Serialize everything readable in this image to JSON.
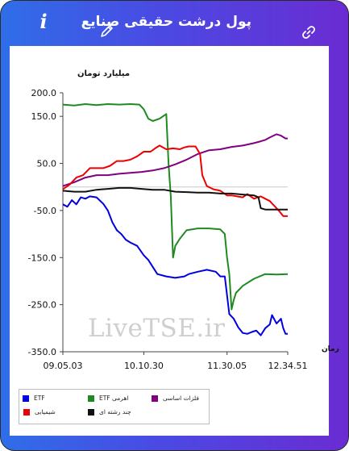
{
  "app": {
    "title": "پول درشت حقیقی صنایع",
    "info_icon": "info-icon",
    "edit_icon": "pencil-icon",
    "share_icon": "link-icon"
  },
  "colors": {
    "gradient_start": "#2f6ee8",
    "gradient_end": "#6a2cd2"
  },
  "chart_data": {
    "type": "line",
    "ylabel": "میلیارد تومان",
    "xlabel": "زمان",
    "ylim": [
      -350,
      200
    ],
    "y_ticks": [
      "200.0",
      "150.0",
      "50.0",
      "-50.0",
      "-150.0",
      "-250.0",
      "-350.0"
    ],
    "y_tick_values": [
      200,
      150,
      50,
      -50,
      -150,
      -250,
      -350
    ],
    "x_ticks": [
      "09.05.03",
      "10.10.30",
      "11.30.05",
      "12.34.51"
    ],
    "x_range": [
      0,
      100
    ],
    "x_tick_values": [
      0,
      36,
      73,
      100
    ],
    "reference_line": 0,
    "grid": false,
    "legend_position": "bottom-left",
    "watermark": "LiveTSE.ir",
    "series": [
      {
        "name": "ETF",
        "color": "#0000e0",
        "points": [
          [
            0,
            -37
          ],
          [
            2,
            -42
          ],
          [
            4,
            -28
          ],
          [
            6,
            -37
          ],
          [
            8,
            -22
          ],
          [
            10,
            -25
          ],
          [
            12,
            -20
          ],
          [
            15,
            -22
          ],
          [
            18,
            -36
          ],
          [
            20,
            -50
          ],
          [
            22,
            -75
          ],
          [
            24,
            -92
          ],
          [
            26,
            -100
          ],
          [
            28,
            -112
          ],
          [
            30,
            -118
          ],
          [
            33,
            -125
          ],
          [
            36,
            -145
          ],
          [
            38,
            -155
          ],
          [
            40,
            -170
          ],
          [
            42,
            -185
          ],
          [
            46,
            -190
          ],
          [
            50,
            -193
          ],
          [
            54,
            -190
          ],
          [
            56,
            -185
          ],
          [
            60,
            -180
          ],
          [
            64,
            -176
          ],
          [
            68,
            -180
          ],
          [
            70,
            -190
          ],
          [
            72,
            -190
          ],
          [
            74,
            -270
          ],
          [
            76,
            -280
          ],
          [
            78,
            -298
          ],
          [
            80,
            -310
          ],
          [
            82,
            -312
          ],
          [
            84,
            -308
          ],
          [
            86,
            -305
          ],
          [
            88,
            -315
          ],
          [
            90,
            -300
          ],
          [
            92,
            -292
          ],
          [
            93,
            -272
          ],
          [
            95,
            -290
          ],
          [
            97,
            -280
          ],
          [
            98,
            -300
          ],
          [
            99,
            -312
          ],
          [
            100,
            -312
          ]
        ]
      },
      {
        "name": "ETF اهرمی",
        "color": "#1f8a1f",
        "points": [
          [
            0,
            175
          ],
          [
            5,
            173
          ],
          [
            10,
            176
          ],
          [
            15,
            174
          ],
          [
            20,
            176
          ],
          [
            25,
            175
          ],
          [
            30,
            176
          ],
          [
            34,
            175
          ],
          [
            36,
            165
          ],
          [
            38,
            145
          ],
          [
            40,
            140
          ],
          [
            43,
            145
          ],
          [
            46,
            155
          ],
          [
            47,
            50
          ],
          [
            48,
            -20
          ],
          [
            49,
            -150
          ],
          [
            50,
            -125
          ],
          [
            52,
            -110
          ],
          [
            55,
            -92
          ],
          [
            60,
            -88
          ],
          [
            65,
            -88
          ],
          [
            70,
            -90
          ],
          [
            72,
            -100
          ],
          [
            73,
            -150
          ],
          [
            74,
            -185
          ],
          [
            75,
            -260
          ],
          [
            76,
            -240
          ],
          [
            77,
            -225
          ],
          [
            80,
            -210
          ],
          [
            85,
            -195
          ],
          [
            90,
            -185
          ],
          [
            95,
            -186
          ],
          [
            100,
            -185
          ]
        ]
      },
      {
        "name": "فلزات اساسی",
        "color": "#800080",
        "points": [
          [
            0,
            2
          ],
          [
            5,
            10
          ],
          [
            10,
            20
          ],
          [
            15,
            25
          ],
          [
            20,
            25
          ],
          [
            25,
            28
          ],
          [
            30,
            30
          ],
          [
            35,
            32
          ],
          [
            40,
            35
          ],
          [
            45,
            40
          ],
          [
            50,
            48
          ],
          [
            55,
            58
          ],
          [
            60,
            70
          ],
          [
            65,
            78
          ],
          [
            70,
            80
          ],
          [
            75,
            85
          ],
          [
            80,
            88
          ],
          [
            85,
            93
          ],
          [
            88,
            97
          ],
          [
            90,
            100
          ],
          [
            92,
            105
          ],
          [
            95,
            112
          ],
          [
            97,
            109
          ],
          [
            99,
            103
          ],
          [
            100,
            103
          ]
        ]
      },
      {
        "name": "شیمیایی",
        "color": "#ee0000",
        "points": [
          [
            0,
            -5
          ],
          [
            3,
            5
          ],
          [
            6,
            20
          ],
          [
            9,
            25
          ],
          [
            12,
            40
          ],
          [
            15,
            40
          ],
          [
            18,
            40
          ],
          [
            21,
            45
          ],
          [
            24,
            55
          ],
          [
            27,
            55
          ],
          [
            30,
            58
          ],
          [
            33,
            65
          ],
          [
            36,
            75
          ],
          [
            39,
            75
          ],
          [
            41,
            82
          ],
          [
            43,
            88
          ],
          [
            46,
            80
          ],
          [
            49,
            82
          ],
          [
            52,
            80
          ],
          [
            54,
            84
          ],
          [
            56,
            86
          ],
          [
            59,
            86
          ],
          [
            61,
            70
          ],
          [
            62,
            25
          ],
          [
            64,
            2
          ],
          [
            67,
            -5
          ],
          [
            70,
            -8
          ],
          [
            73,
            -18
          ],
          [
            75,
            -18
          ],
          [
            80,
            -22
          ],
          [
            82,
            -15
          ],
          [
            85,
            -25
          ],
          [
            88,
            -20
          ],
          [
            90,
            -25
          ],
          [
            92,
            -30
          ],
          [
            94,
            -40
          ],
          [
            96,
            -50
          ],
          [
            98,
            -62
          ],
          [
            100,
            -62
          ]
        ]
      },
      {
        "name": "چند رشته ای",
        "color": "#111111",
        "points": [
          [
            0,
            -8
          ],
          [
            5,
            -10
          ],
          [
            10,
            -10
          ],
          [
            15,
            -6
          ],
          [
            20,
            -4
          ],
          [
            25,
            -2
          ],
          [
            30,
            -2
          ],
          [
            35,
            -4
          ],
          [
            40,
            -6
          ],
          [
            45,
            -6
          ],
          [
            50,
            -10
          ],
          [
            55,
            -11
          ],
          [
            60,
            -12
          ],
          [
            65,
            -12
          ],
          [
            70,
            -14
          ],
          [
            75,
            -14
          ],
          [
            80,
            -16
          ],
          [
            85,
            -18
          ],
          [
            87,
            -22
          ],
          [
            88,
            -45
          ],
          [
            90,
            -48
          ],
          [
            95,
            -48
          ],
          [
            100,
            -48
          ]
        ]
      }
    ]
  }
}
